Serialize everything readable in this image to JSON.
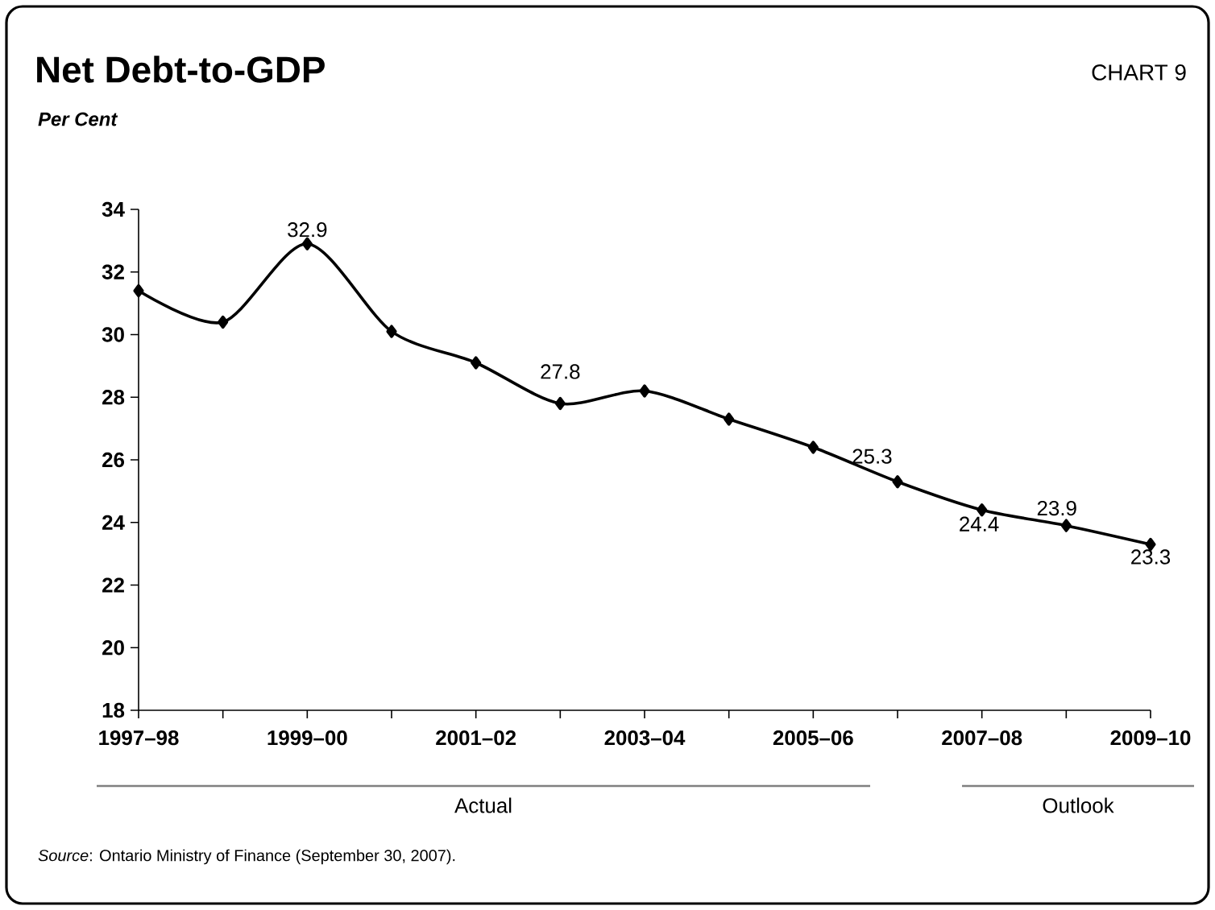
{
  "chart_data": {
    "type": "line",
    "title": "Net Debt-to-GDP",
    "ylabel": "Per Cent",
    "categories": [
      "1997–98",
      null,
      "1999–00",
      null,
      "2001–02",
      null,
      "2003–04",
      null,
      "2005–06",
      null,
      "2007–08",
      null,
      "2009–10"
    ],
    "series": [
      {
        "color": "#000000",
        "values": [
          31.4,
          30.4,
          32.9,
          30.1,
          29.1,
          27.8,
          28.2,
          27.3,
          26.4,
          25.3,
          24.4,
          23.9,
          23.3
        ],
        "value_labels": [
          null,
          null,
          "32.9",
          null,
          null,
          "27.8",
          null,
          null,
          null,
          "25.3",
          "24.4",
          "23.9",
          "23.3"
        ]
      }
    ],
    "ylim": [
      18,
      34
    ],
    "yticks": [
      18,
      20,
      22,
      24,
      26,
      28,
      30,
      32,
      34
    ],
    "marker": "diamond",
    "line_style": "solid",
    "grid": false,
    "annotations": [
      "CHART 9",
      "Actual",
      "Outlook",
      "*Source*: Ontario Ministry of Finance (September 30, 2007)."
    ]
  }
}
